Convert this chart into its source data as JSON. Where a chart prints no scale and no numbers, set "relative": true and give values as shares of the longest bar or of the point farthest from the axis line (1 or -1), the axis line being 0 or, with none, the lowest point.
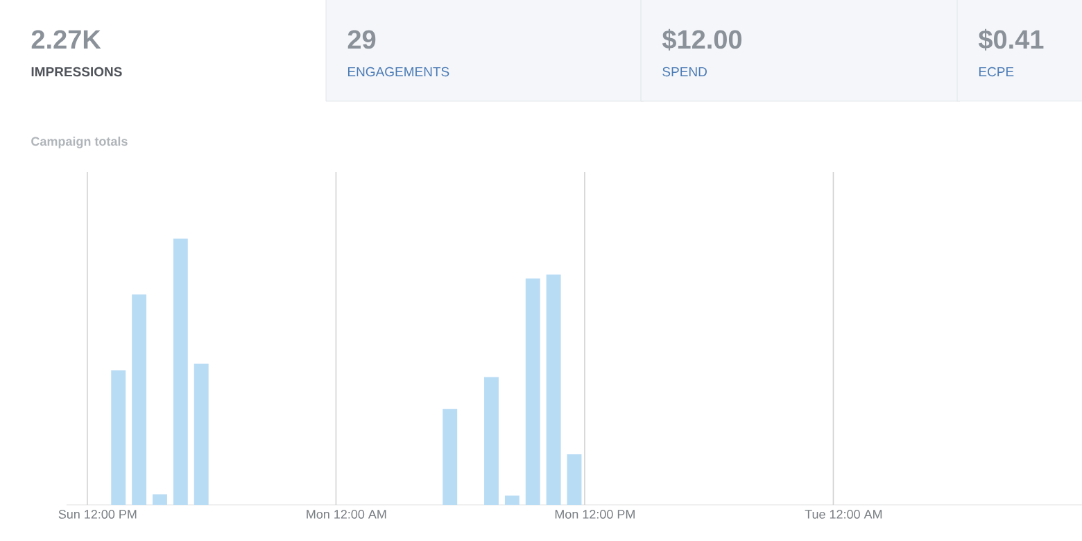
{
  "chart_data": [
    {
      "type": "other",
      "annotations": [
        "2.27K",
        "IMPRESSIONS",
        "29",
        "ENGAGEMENTS",
        "$12.00",
        "SPEND",
        "$0.41",
        "ECPE"
      ]
    },
    {
      "type": "bar",
      "title": "Campaign totals",
      "relative": true,
      "categories": [
        null,
        "Sun 12:00 PM",
        null,
        null,
        null,
        null,
        null,
        null,
        null,
        null,
        null,
        null,
        null,
        "Mon 12:00 AM",
        null,
        null,
        null,
        null,
        null,
        null,
        null,
        null,
        null,
        null,
        null,
        "Mon 12:00 PM",
        null,
        null,
        null,
        null,
        null,
        null,
        null,
        null,
        null,
        null,
        null,
        "Tue 12:00 AM",
        null,
        null,
        null,
        null,
        null,
        null,
        null,
        null,
        null,
        null,
        null
      ],
      "values": [
        0,
        0,
        0.505,
        0.79,
        0.04,
        1,
        0.53,
        0,
        0,
        0,
        0,
        0,
        0,
        0,
        0,
        0,
        0,
        0,
        0.36,
        0,
        0.48,
        0.035,
        0.85,
        0.865,
        0.19,
        0,
        0,
        0,
        0,
        0,
        0,
        0,
        0,
        0,
        0,
        0,
        0,
        0,
        0,
        0,
        0,
        0,
        0,
        0,
        0,
        0,
        0,
        0,
        0
      ],
      "color": "#b9dcf5",
      "grid": true
    }
  ]
}
